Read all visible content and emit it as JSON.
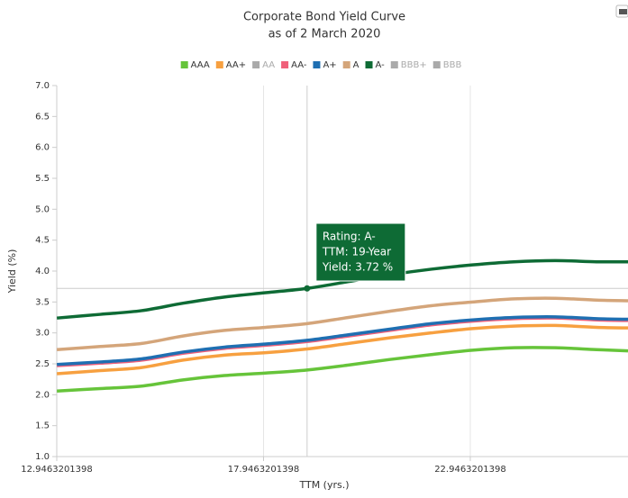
{
  "chart_data": {
    "type": "line",
    "title": "Corporate Bond Yield Curve",
    "subtitle": "as of 2 March 2020",
    "x_label": "TTM (yrs.)",
    "y_label": "Yield (%)",
    "x": [
      12.95,
      14,
      15,
      16,
      17,
      18,
      19,
      20,
      21,
      22,
      23,
      24,
      25,
      26,
      26.76
    ],
    "series": [
      {
        "name": "AAA",
        "color": "#66c43a",
        "visible": true,
        "values": [
          2.06,
          2.1,
          2.14,
          2.24,
          2.31,
          2.35,
          2.4,
          2.48,
          2.57,
          2.65,
          2.72,
          2.76,
          2.76,
          2.73,
          2.71
        ]
      },
      {
        "name": "AA+",
        "color": "#f7a040",
        "visible": true,
        "values": [
          2.34,
          2.39,
          2.44,
          2.56,
          2.64,
          2.68,
          2.74,
          2.83,
          2.92,
          3.0,
          3.07,
          3.11,
          3.12,
          3.09,
          3.08
        ]
      },
      {
        "name": "AA",
        "color": "#aaaaaa",
        "visible": false
      },
      {
        "name": "AA-",
        "color": "#f0607a",
        "visible": true,
        "values": [
          2.47,
          2.51,
          2.56,
          2.67,
          2.75,
          2.8,
          2.86,
          2.95,
          3.04,
          3.13,
          3.19,
          3.23,
          3.24,
          3.21,
          3.2
        ]
      },
      {
        "name": "A+",
        "color": "#1f6fb2",
        "visible": true,
        "values": [
          2.49,
          2.53,
          2.58,
          2.69,
          2.77,
          2.82,
          2.88,
          2.97,
          3.06,
          3.15,
          3.21,
          3.25,
          3.26,
          3.23,
          3.22
        ]
      },
      {
        "name": "A",
        "color": "#d4a57a",
        "visible": true,
        "values": [
          2.73,
          2.78,
          2.83,
          2.95,
          3.04,
          3.09,
          3.15,
          3.25,
          3.35,
          3.44,
          3.5,
          3.55,
          3.56,
          3.53,
          3.52
        ]
      },
      {
        "name": "A-",
        "color": "#0e6b35",
        "visible": true,
        "values": [
          3.24,
          3.3,
          3.36,
          3.48,
          3.58,
          3.65,
          3.72,
          3.83,
          3.94,
          4.03,
          4.1,
          4.15,
          4.17,
          4.15,
          4.15
        ]
      },
      {
        "name": "BBB+",
        "color": "#aaaaaa",
        "visible": false
      },
      {
        "name": "BBB",
        "color": "#aaaaaa",
        "visible": false
      }
    ],
    "xlim": [
      12.9463201398,
      26.76
    ],
    "xticks": [
      12.9463201398,
      17.9463201398,
      22.9463201398
    ],
    "ylim": [
      1.0,
      7.0
    ],
    "yticks": [
      {
        "value": 1.0,
        "label": "1.0"
      },
      {
        "value": 1.5,
        "label": "1.5"
      },
      {
        "value": 2.0,
        "label": "2.0"
      },
      {
        "value": 2.5,
        "label": "2.5"
      },
      {
        "value": 3.0,
        "label": "3.0"
      },
      {
        "value": 3.5,
        "label": "3.5"
      },
      {
        "value": 4.0,
        "label": "4.0"
      },
      {
        "value": 4.5,
        "label": "4.5"
      },
      {
        "value": 5.0,
        "label": "5.0"
      },
      {
        "value": 5.5,
        "label": "5.5"
      },
      {
        "value": 6.0,
        "label": "6.0"
      },
      {
        "value": 6.5,
        "label": "6.5"
      },
      {
        "value": 7.0,
        "label": "7.0"
      }
    ],
    "grid": "x",
    "legend": "top",
    "tooltip": {
      "series": 6,
      "index": 6,
      "lines": [
        "Rating: A-",
        "TTM: 19-Year",
        "Yield: 3.72 %"
      ]
    }
  }
}
